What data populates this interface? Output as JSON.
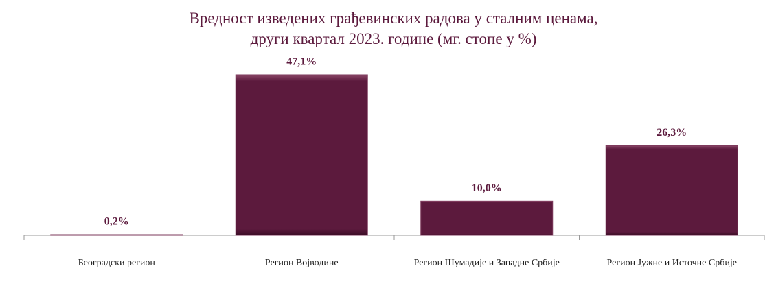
{
  "chart_data": {
    "type": "bar",
    "title": "Вредност изведених грађевинских радова у сталним ценама,\nдруги квартал 2023. године (мг. стопе у %)",
    "categories": [
      "Београдски регион",
      "Регион Војводине",
      "Регион Шумадије и Западне Србије",
      "Регион Јужне и Источне Србије"
    ],
    "values": [
      0.2,
      47.1,
      10.0,
      26.3
    ],
    "value_labels": [
      "0,2%",
      "47,1%",
      "10,0%",
      "26,3%"
    ],
    "color": "#5c1a3d"
  }
}
